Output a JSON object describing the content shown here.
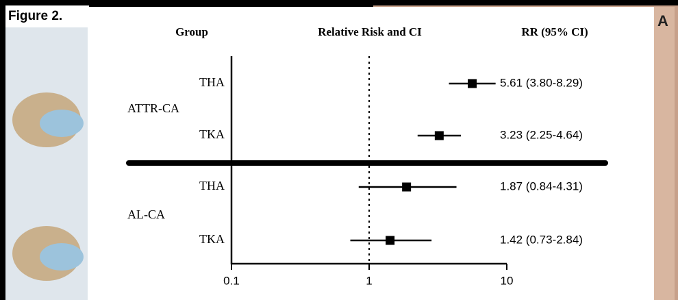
{
  "figure_label": "Figure 2.",
  "panel_label": "A",
  "chart_data": {
    "type": "forest",
    "title": "Relative Risk and CI",
    "group_header": "Group",
    "ci_header": "RR (95% CI)",
    "groups": [
      {
        "name": "ATTR-CA",
        "rows": [
          {
            "label": "THA",
            "value": 5.61,
            "low": 3.8,
            "high": 8.29,
            "value_label": "5.61 (3.80-8.29)"
          },
          {
            "label": "TKA",
            "value": 3.23,
            "low": 2.25,
            "high": 4.64,
            "value_label": "3.23 (2.25-4.64)"
          }
        ]
      },
      {
        "name": "AL-CA",
        "rows": [
          {
            "label": "THA",
            "value": 1.87,
            "low": 0.84,
            "high": 4.31,
            "value_label": "1.87 (0.84-4.31)"
          },
          {
            "label": "TKA",
            "value": 1.42,
            "low": 0.73,
            "high": 2.84,
            "value_label": "1.42 (0.73-2.84)"
          }
        ]
      }
    ],
    "xlim": [
      0.1,
      10
    ],
    "xticks": [
      0.1,
      1,
      10
    ],
    "xlog": true,
    "reference_line": 1,
    "color": "#000000"
  }
}
